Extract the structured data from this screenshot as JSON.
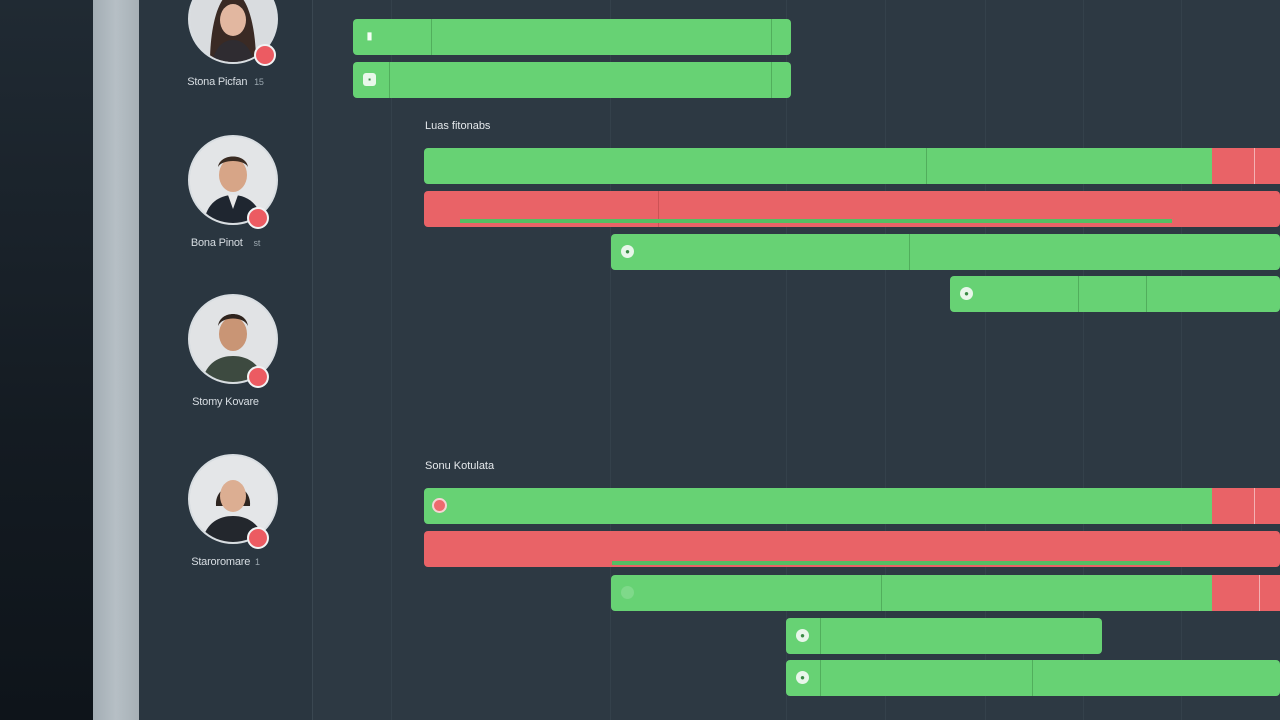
{
  "people": [
    {
      "name": "Stona Picfan",
      "suffix": "15"
    },
    {
      "name": "Bona Pinot",
      "suffix": "st"
    },
    {
      "name": "Stomy Kovare",
      "suffix": ""
    },
    {
      "name": "Staroromare",
      "suffix": "1"
    }
  ],
  "sections": [
    {
      "label": "Luas fitonabs"
    },
    {
      "label": "Sonu Kotulata"
    }
  ],
  "colors": {
    "background": "#2e3a44",
    "panel": "#2a3640",
    "bar_green": "#67d274",
    "bar_red": "#e96367",
    "status_dot": "#ec5b62"
  },
  "icons": {
    "task": "circle-icon",
    "alert": "alert-icon",
    "status": "busy-status-icon"
  }
}
